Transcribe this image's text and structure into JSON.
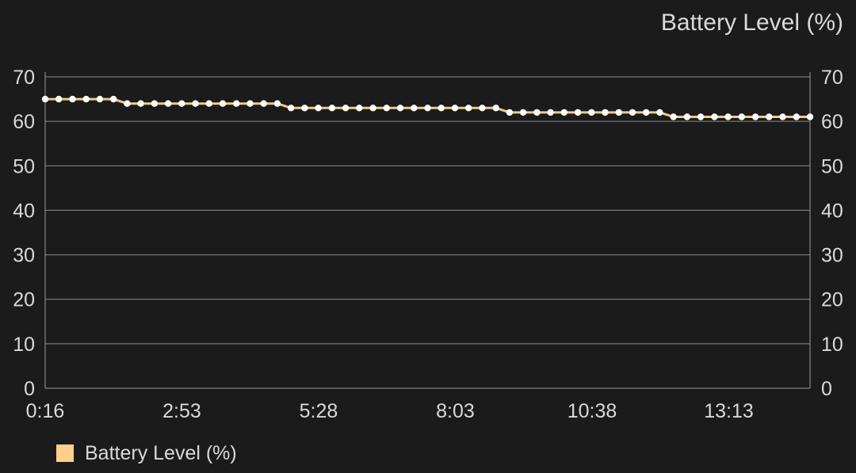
{
  "title": "Battery Level (%)",
  "colors": {
    "background": "#1b1b1b",
    "series_line": "#f5c78a",
    "marker": "#ffffff",
    "legend_swatch": "#ffcf8c",
    "grid": "#8c8c8c",
    "text": "#d9d9d9"
  },
  "legend": {
    "label": "Battery Level (%)"
  },
  "chart_data": {
    "type": "line",
    "title": "Battery Level (%)",
    "xlabel": "",
    "ylabel": "",
    "ylim": [
      0,
      70
    ],
    "y_ticks": [
      0,
      10,
      20,
      30,
      40,
      50,
      60,
      70
    ],
    "x_tick_labels": [
      "0:16",
      "2:53",
      "5:28",
      "8:03",
      "10:38",
      "13:13"
    ],
    "y_axes": [
      "left",
      "right"
    ],
    "grid": true,
    "legend_position": "bottom-left",
    "series": [
      {
        "name": "Battery Level (%)",
        "values": [
          65,
          65,
          65,
          65,
          65,
          65,
          64,
          64,
          64,
          64,
          64,
          64,
          64,
          64,
          64,
          64,
          64,
          64,
          63,
          63,
          63,
          63,
          63,
          63,
          63,
          63,
          63,
          63,
          63,
          63,
          63,
          63,
          63,
          63,
          62,
          62,
          62,
          62,
          62,
          62,
          62,
          62,
          62,
          62,
          62,
          62,
          61,
          61,
          61,
          61,
          61,
          61,
          61,
          61,
          61,
          61,
          61
        ]
      }
    ]
  }
}
